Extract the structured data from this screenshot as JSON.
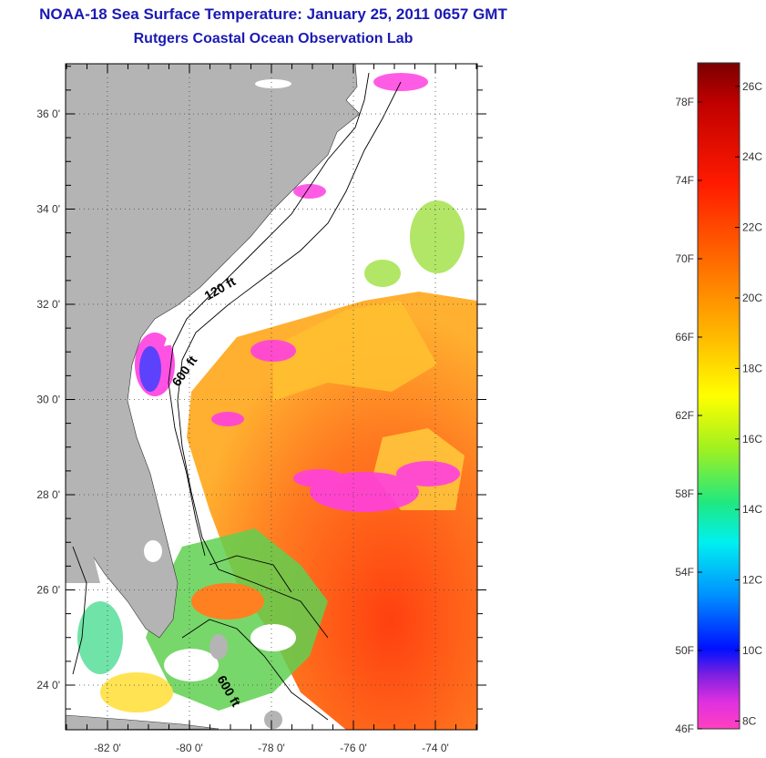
{
  "header": {
    "title": "NOAA-18 Sea Surface Temperature:  January 25, 2011 0657 GMT",
    "subtitle": "Rutgers Coastal Ocean Observation Lab"
  },
  "map": {
    "lat_ticks": [
      {
        "value": 36,
        "label": "36 0'"
      },
      {
        "value": 34,
        "label": "34 0'"
      },
      {
        "value": 32,
        "label": "32 0'"
      },
      {
        "value": 30,
        "label": "30 0'"
      },
      {
        "value": 28,
        "label": "28 0'"
      },
      {
        "value": 26,
        "label": "26 0'"
      },
      {
        "value": 24,
        "label": "24 0'"
      }
    ],
    "lon_ticks": [
      {
        "value": -82,
        "label": "-82 0'"
      },
      {
        "value": -80,
        "label": "-80 0'"
      },
      {
        "value": -78,
        "label": "-78 0'"
      },
      {
        "value": -76,
        "label": "-76 0'"
      },
      {
        "value": -74,
        "label": "-74 0'"
      }
    ],
    "contours": {
      "label_120": "120 ft",
      "label_600a": "600 ft",
      "label_600b": "600 ft"
    },
    "colors": {
      "land": "#b4b4b4",
      "cloud": "#ffffff",
      "warm": "#ff6a12",
      "hot": "#ff3a10",
      "mid": "#ffc020",
      "cool": "#60e050",
      "cold": "#ff40e0"
    }
  },
  "colorbar": {
    "fahrenheit": [
      "78F",
      "74F",
      "70F",
      "66F",
      "62F",
      "58F",
      "54F",
      "50F",
      "46F"
    ],
    "celsius": [
      "26C",
      "24C",
      "22C",
      "20C",
      "18C",
      "16C",
      "14C",
      "12C",
      "10C",
      "8C"
    ],
    "min_f": 46,
    "max_f": 80
  }
}
